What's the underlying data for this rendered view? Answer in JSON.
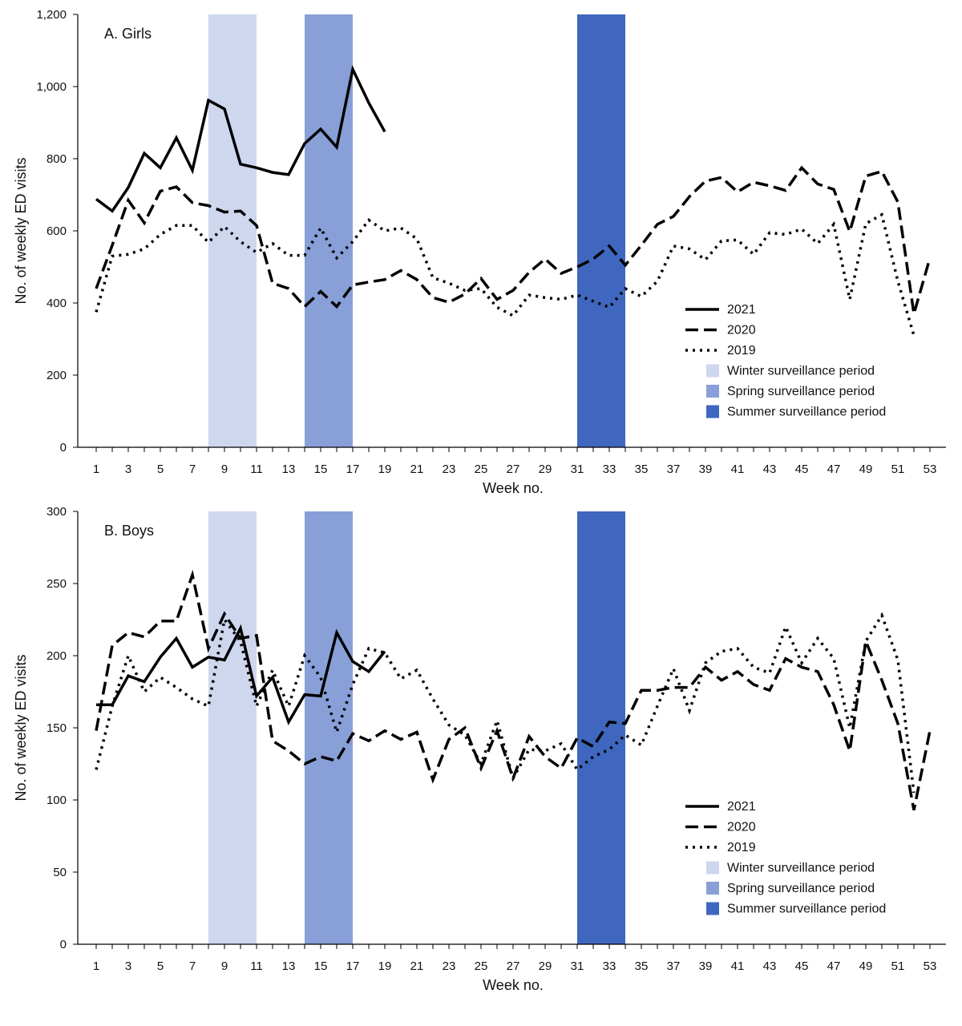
{
  "chart_data": [
    {
      "type": "line",
      "panel_label": "A. Girls",
      "xlabel": "Week no.",
      "ylabel": "No. of weekly ED visits",
      "ylim": [
        0,
        1200
      ],
      "yticks": [
        0,
        200,
        400,
        600,
        800,
        1000,
        1200
      ],
      "ytick_labels": [
        "0",
        "200",
        "400",
        "600",
        "800",
        "1,000",
        "1,200"
      ],
      "xlim": [
        1,
        53
      ],
      "xtick_labels": [
        "1",
        "3",
        "5",
        "7",
        "9",
        "11",
        "13",
        "15",
        "17",
        "19",
        "21",
        "23",
        "25",
        "27",
        "29",
        "31",
        "33",
        "35",
        "37",
        "39",
        "41",
        "43",
        "45",
        "47",
        "49",
        "51",
        "53"
      ],
      "shaded_periods": [
        {
          "name": "Winter surveillance period",
          "start_week": 8,
          "end_week": 11,
          "color": "#cfd7ef"
        },
        {
          "name": "Spring surveillance period",
          "start_week": 14,
          "end_week": 17,
          "color": "#889fd8"
        },
        {
          "name": "Summer surveillance period",
          "start_week": 31,
          "end_week": 34,
          "color": "#3f67bf"
        }
      ],
      "series": [
        {
          "name": "2021",
          "style": "solid",
          "values": [
            688,
            655,
            720,
            815,
            775,
            858,
            768,
            962,
            938,
            785,
            775,
            762,
            756,
            842,
            882,
            832,
            1048,
            955,
            875
          ]
        },
        {
          "name": "2020",
          "style": "dashed",
          "values": [
            440,
            560,
            685,
            622,
            710,
            722,
            678,
            670,
            652,
            655,
            615,
            455,
            440,
            390,
            432,
            390,
            450,
            458,
            465,
            490,
            465,
            415,
            402,
            425,
            468,
            410,
            435,
            485,
            522,
            482,
            500,
            522,
            558,
            505,
            560,
            618,
            640,
            695,
            738,
            748,
            708,
            735,
            725,
            712,
            775,
            730,
            715,
            598,
            752,
            765,
            680,
            370,
            525
          ]
        },
        {
          "name": "2019",
          "style": "dotted",
          "values": [
            375,
            530,
            535,
            550,
            590,
            615,
            615,
            568,
            612,
            570,
            540,
            565,
            532,
            532,
            608,
            525,
            570,
            630,
            600,
            608,
            578,
            470,
            455,
            435,
            440,
            388,
            365,
            422,
            415,
            410,
            422,
            405,
            388,
            440,
            418,
            460,
            558,
            550,
            520,
            572,
            575,
            535,
            595,
            590,
            605,
            565,
            618,
            410,
            620,
            645,
            460,
            310
          ]
        }
      ],
      "legend": {
        "placement": "lower-right",
        "entries": [
          "2021",
          "2020",
          "2019",
          "Winter surveillance period",
          "Spring surveillance period",
          "Summer surveillance period"
        ]
      }
    },
    {
      "type": "line",
      "panel_label": "B. Boys",
      "xlabel": "Week no.",
      "ylabel": "No. of weekly ED visits",
      "ylim": [
        0,
        300
      ],
      "yticks": [
        0,
        50,
        100,
        150,
        200,
        250,
        300
      ],
      "ytick_labels": [
        "0",
        "50",
        "100",
        "150",
        "200",
        "250",
        "300"
      ],
      "xlim": [
        1,
        53
      ],
      "xtick_labels": [
        "1",
        "3",
        "5",
        "7",
        "9",
        "11",
        "13",
        "15",
        "17",
        "19",
        "21",
        "23",
        "25",
        "27",
        "29",
        "31",
        "33",
        "35",
        "37",
        "39",
        "41",
        "43",
        "45",
        "47",
        "49",
        "51",
        "53"
      ],
      "shaded_periods": [
        {
          "name": "Winter surveillance period",
          "start_week": 8,
          "end_week": 11,
          "color": "#cfd7ef"
        },
        {
          "name": "Spring surveillance period",
          "start_week": 14,
          "end_week": 17,
          "color": "#889fd8"
        },
        {
          "name": "Summer surveillance period",
          "start_week": 31,
          "end_week": 34,
          "color": "#3f67bf"
        }
      ],
      "series": [
        {
          "name": "2021",
          "style": "solid",
          "values": [
            166,
            166,
            186,
            182,
            199,
            212,
            192,
            199,
            197,
            219,
            172,
            185,
            154,
            173,
            172,
            216,
            196,
            189,
            203
          ]
        },
        {
          "name": "2020",
          "style": "dashed",
          "values": [
            148,
            207,
            216,
            213,
            224,
            224,
            256,
            205,
            229,
            212,
            214,
            141,
            134,
            125,
            130,
            127,
            146,
            141,
            148,
            142,
            147,
            114,
            142,
            150,
            122,
            148,
            115,
            144,
            130,
            122,
            143,
            137,
            154,
            153,
            176,
            176,
            178,
            178,
            192,
            183,
            189,
            180,
            176,
            198,
            192,
            189,
            166,
            134,
            210,
            183,
            153,
            93,
            148
          ]
        },
        {
          "name": "2019",
          "style": "dotted",
          "values": [
            121,
            165,
            200,
            175,
            185,
            178,
            170,
            165,
            225,
            210,
            165,
            190,
            165,
            200,
            185,
            147,
            180,
            205,
            202,
            184,
            190,
            170,
            152,
            145,
            125,
            155,
            115,
            135,
            134,
            139,
            121,
            130,
            135,
            145,
            138,
            165,
            191,
            162,
            195,
            203,
            205,
            192,
            188,
            220,
            195,
            212,
            198,
            150,
            210,
            228,
            197,
            105
          ]
        }
      ],
      "legend": {
        "placement": "lower-right",
        "entries": [
          "2021",
          "2020",
          "2019",
          "Winter surveillance period",
          "Spring surveillance period",
          "Summer surveillance period"
        ]
      }
    }
  ]
}
